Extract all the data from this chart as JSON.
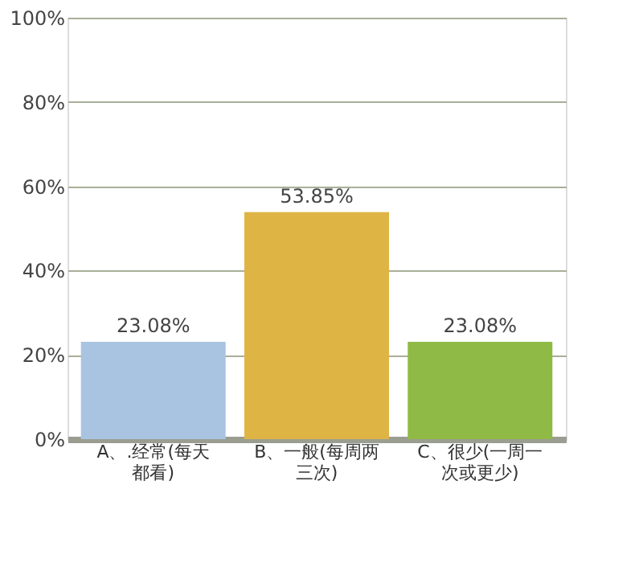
{
  "chart_data": {
    "type": "bar",
    "categories": [
      "A、.经常(每天都看)",
      "B、一般(每周两三次)",
      "C、很少(一周一次或更少)"
    ],
    "values": [
      23.08,
      53.85,
      23.08
    ],
    "colors": [
      "#a8c4e0",
      "#deb445",
      "#8fba45"
    ],
    "ylim": [
      0,
      100
    ],
    "yticks": [
      {
        "value": 0,
        "label": "0%"
      },
      {
        "value": 20,
        "label": "20%"
      },
      {
        "value": 40,
        "label": "40%"
      },
      {
        "value": 60,
        "label": "60%"
      },
      {
        "value": 80,
        "label": "80%"
      },
      {
        "value": 100,
        "label": "100%"
      }
    ],
    "value_labels": [
      "23.08%",
      "53.85%",
      "23.08%"
    ],
    "grid": "y"
  }
}
